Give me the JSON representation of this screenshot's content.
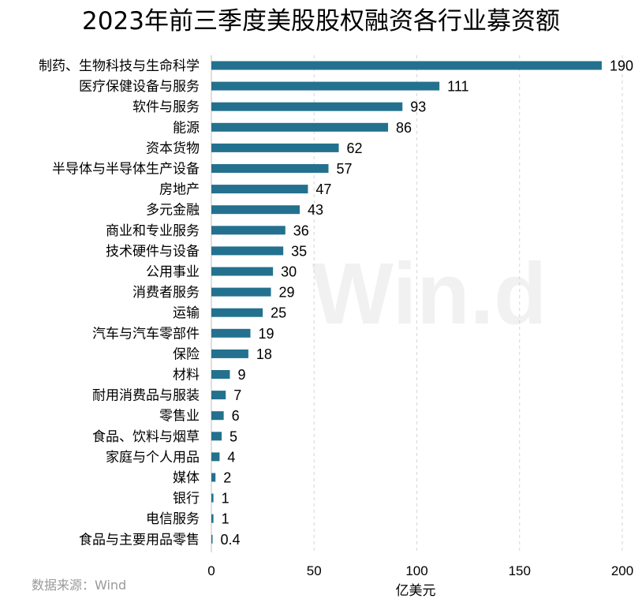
{
  "chart_data": {
    "type": "bar",
    "orientation": "horizontal",
    "title": "2023年前三季度美股股权融资各行业募资额",
    "xlabel": "亿美元",
    "ylabel": "",
    "xlim": [
      0,
      200
    ],
    "xticks": [
      "0",
      "50",
      "100",
      "150",
      "200"
    ],
    "grid": "vertical dashed",
    "bar_color": "#23718f",
    "categories": [
      "制药、生物科技与生命科学",
      "医疗保健设备与服务",
      "软件与服务",
      "能源",
      "资本货物",
      "半导体与半导体生产设备",
      "房地产",
      "多元金融",
      "商业和专业服务",
      "技术硬件与设备",
      "公用事业",
      "消费者服务",
      "运输",
      "汽车与汽车零部件",
      "保险",
      "材料",
      "耐用消费品与服装",
      "零售业",
      "食品、饮料与烟草",
      "家庭与个人用品",
      "媒体",
      "银行",
      "电信服务",
      "食品与主要用品零售"
    ],
    "values": [
      190,
      111,
      93,
      86,
      62,
      57,
      47,
      43,
      36,
      35,
      30,
      29,
      25,
      19,
      18,
      9,
      7,
      6,
      5,
      4,
      2,
      1,
      1,
      0.4
    ],
    "value_labels": [
      "190",
      "111",
      "93",
      "86",
      "62",
      "57",
      "47",
      "43",
      "36",
      "35",
      "30",
      "29",
      "25",
      "19",
      "18",
      "9",
      "7",
      "6",
      "5",
      "4",
      "2",
      "1",
      "1",
      "0.4"
    ]
  },
  "source": "数据来源：Wind",
  "watermark": "Win.d"
}
